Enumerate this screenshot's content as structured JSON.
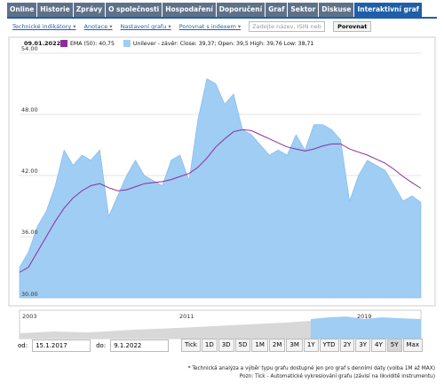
{
  "tabs": [
    {
      "label": "Online"
    },
    {
      "label": "Historie"
    },
    {
      "label": "Zprávy"
    },
    {
      "label": "O společnosti"
    },
    {
      "label": "Hospodaření"
    },
    {
      "label": "Doporučení"
    },
    {
      "label": "Graf"
    },
    {
      "label": "Sektor"
    },
    {
      "label": "Diskuse"
    },
    {
      "label": "Interaktivní graf",
      "active": true
    }
  ],
  "toolbar": {
    "links": [
      "Technické indikátory",
      "Anotace",
      "Nastavení grafu",
      "Porovnat s indexem"
    ],
    "search_placeholder": "Zadejte název, ISIN neb",
    "compare_button": "Porovnat"
  },
  "chart_data": {
    "type": "area",
    "date": "09.01.2022",
    "series": [
      {
        "name": "EMA (50): 40,75",
        "type": "line",
        "color": "#8e2c9c",
        "values": [
          32.5,
          33,
          34.5,
          36,
          37.5,
          38.8,
          39.8,
          40.5,
          41,
          41.2,
          40.8,
          40.5,
          40.6,
          40.9,
          41.2,
          41.3,
          41.4,
          41.6,
          41.9,
          42.2,
          42.8,
          43.7,
          44.8,
          45.6,
          46.3,
          46.5,
          46.4,
          46,
          45.6,
          45.2,
          44.8,
          44.6,
          44.4,
          44.6,
          44.9,
          45.1,
          45.1,
          44.6,
          44.3,
          44,
          43.6,
          43.2,
          42.6,
          41.9,
          41.3,
          40.75
        ]
      },
      {
        "name": "Unilever - závěr: Close: 39,37; Open: 39,5 High: 39,76 Low: 38,71",
        "type": "area",
        "color": "#9fcdf3",
        "values": [
          33,
          34.5,
          37,
          38.5,
          41,
          44.5,
          43,
          44,
          43.5,
          44.5,
          38,
          40,
          42,
          43.5,
          42,
          41.5,
          41,
          43.5,
          44,
          41.5,
          47.5,
          51.5,
          51,
          49,
          50,
          46.5,
          46,
          45,
          44,
          44.5,
          44,
          46,
          44.5,
          47,
          47,
          46.5,
          45.5,
          39.5,
          42,
          43.5,
          43,
          42.5,
          41,
          39.5,
          40,
          39.37
        ]
      }
    ],
    "ylim": [
      30,
      54
    ],
    "yticks": [
      {
        "value": 30,
        "label": "30.00"
      },
      {
        "value": 36,
        "label": "36.00"
      },
      {
        "value": 42,
        "label": "42.00"
      },
      {
        "value": 48,
        "label": "48.00"
      },
      {
        "value": 54,
        "label": "54.00"
      }
    ],
    "grid": true
  },
  "navigator": {
    "labels": [
      "2003",
      "2011",
      "2019"
    ]
  },
  "range": {
    "from_label": "od:",
    "from": "15.1.2017",
    "to_label": "do:",
    "to": "9.1.2022",
    "buttons": [
      {
        "label": "Tick"
      },
      {
        "label": "1D"
      },
      {
        "label": "3D"
      },
      {
        "label": "5D"
      },
      {
        "label": "1M"
      },
      {
        "label": "2M"
      },
      {
        "label": "3M"
      },
      {
        "label": "1Y"
      },
      {
        "label": "YTD"
      },
      {
        "label": "2Y"
      },
      {
        "label": "3Y"
      },
      {
        "label": "4Y"
      },
      {
        "label": "5Y",
        "active": true
      },
      {
        "label": "Max"
      }
    ]
  },
  "notes": [
    "* Technická analýza a výběr typu grafu dostupné jen pro graf s denními daty (volba 1M až MAX)",
    "Pozn: Tick - Automatické vykreslování grafu (závisí na likviditě instrumentu)"
  ]
}
